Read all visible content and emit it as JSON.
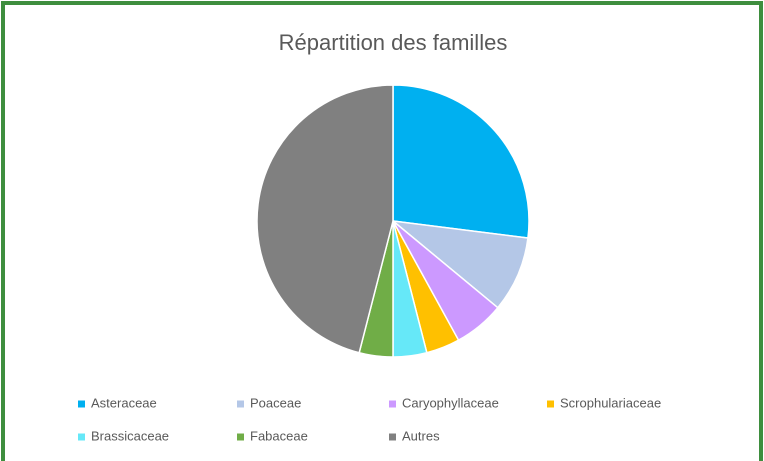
{
  "chart_data": {
    "type": "pie",
    "title": "Répartition des familles",
    "categories": [
      "Asteraceae",
      "Poaceae",
      "Caryophyllaceae",
      "Scrophulariaceae",
      "Brassicaceae",
      "Fabaceae",
      "Autres"
    ],
    "values": [
      27,
      9,
      6,
      4,
      4,
      4,
      46
    ],
    "colors": [
      "#00b0f0",
      "#b4c7e7",
      "#cc99ff",
      "#ffc000",
      "#66e8f8",
      "#70ad47",
      "#808080"
    ],
    "legend": "bottom"
  }
}
